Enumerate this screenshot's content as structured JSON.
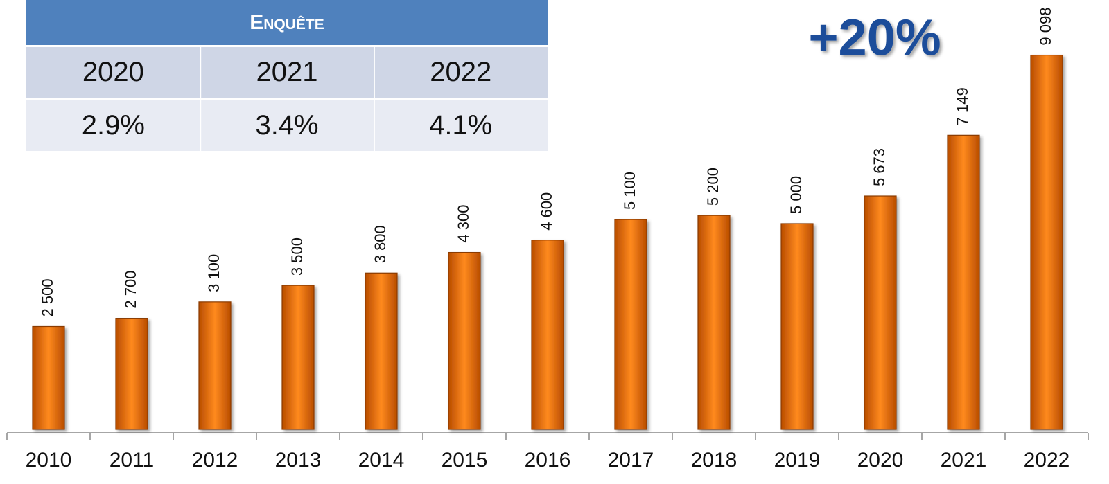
{
  "chart_data": {
    "type": "bar",
    "categories": [
      "2010",
      "2011",
      "2012",
      "2013",
      "2014",
      "2015",
      "2016",
      "2017",
      "2018",
      "2019",
      "2020",
      "2021",
      "2022"
    ],
    "values": [
      2500,
      2700,
      3100,
      3500,
      3800,
      4300,
      4600,
      5100,
      5200,
      5000,
      5673,
      7149,
      9098
    ],
    "value_labels": [
      "2 500",
      "2 700",
      "3 100",
      "3 500",
      "3 800",
      "4 300",
      "4 600",
      "5 100",
      "5 200",
      "5 000",
      "5 673",
      "7 149",
      "9 098"
    ],
    "color": "#f07818",
    "ylim": [
      0,
      10000
    ],
    "annotation": "+20%",
    "table": {
      "title": "Enquête",
      "rows": [
        [
          "2020",
          "2021",
          "2022"
        ],
        [
          "2.9%",
          "3.4%",
          "4.1%"
        ]
      ]
    }
  }
}
